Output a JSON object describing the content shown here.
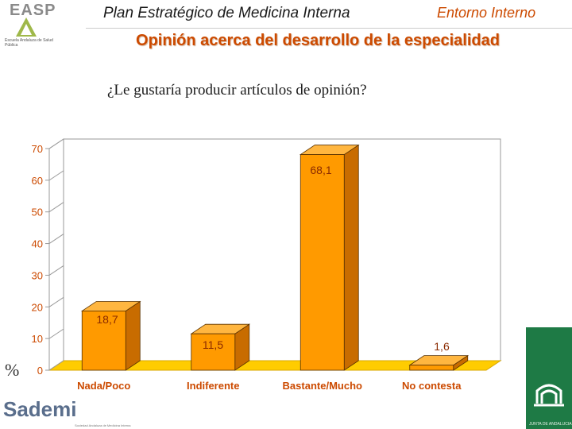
{
  "header": {
    "title": "Plan Estratégico de Medicina Interna",
    "section": "Entorno Interno",
    "subtitle": "Opinión acerca del desarrollo de la especialidad"
  },
  "logos": {
    "easp_mark": "EASP",
    "easp_text": "Escuela Andaluza de Salud Pública",
    "sademi_word": "Sademi",
    "sademi_tagline": "Sociedad Andaluza de Medicina Interna",
    "junta_text": "JUNTA DE ANDALUCIA"
  },
  "question": "¿Le gustaría producir artículos de opinión?",
  "chart_data": {
    "type": "bar",
    "categories": [
      "Nada/Poco",
      "Indiferente",
      "Bastante/Mucho",
      "No contesta"
    ],
    "values": [
      18.7,
      11.5,
      68.1,
      1.6
    ],
    "value_labels": [
      "18,7",
      "11,5",
      "68,1",
      "1,6"
    ],
    "ytick_values": [
      0,
      10,
      20,
      30,
      40,
      50,
      60,
      70
    ],
    "ytick_labels": [
      "0",
      "10",
      "20",
      "30",
      "40",
      "50",
      "60",
      "70"
    ],
    "ylabel": "%",
    "ylim": [
      0,
      70
    ],
    "title": "",
    "grid": false,
    "style_3d": true,
    "colors": {
      "bar_front": "#ff9a00",
      "bar_top": "#ffb640",
      "bar_side": "#c86c00",
      "floor": "#ffcc00",
      "text": "#cc4a00",
      "axis": "#9a9a9a"
    }
  }
}
